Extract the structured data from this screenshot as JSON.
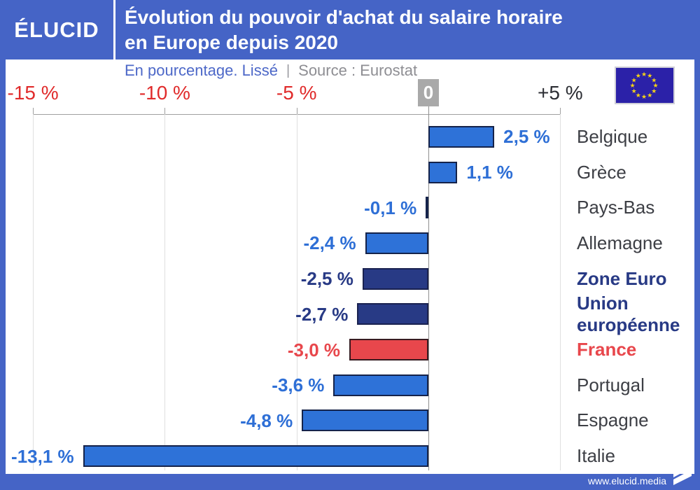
{
  "header": {
    "logo": "ÉLUCID",
    "title_line1": "Évolution du pouvoir d'achat du salaire horaire",
    "title_line2": "en Europe depuis 2020"
  },
  "subheader": {
    "note": "En pourcentage. Lissé",
    "separator": "|",
    "source": "Source : Eurostat"
  },
  "footer": {
    "url": "www.elucid.media"
  },
  "colors": {
    "brand_blue": "#4564c6",
    "bar_blue": "#2e72d8",
    "bar_blue_border": "#15234a",
    "bar_navy": "#283a85",
    "bar_navy_border": "#1a2250",
    "bar_red": "#e8474c",
    "bar_red_border": "#371a20",
    "label_blue": "#2e6fd6",
    "label_navy": "#283a85",
    "label_red": "#e8474c",
    "country_gray": "#3d3f45",
    "axis_red": "#e02b2b",
    "axis_dark": "#2b2d33",
    "zero_box_bg": "#a9a9a9",
    "eu_flag_bg": "#2b21a8",
    "eu_star_yellow": "#f5d216"
  },
  "chart_data": {
    "type": "bar",
    "orientation": "horizontal",
    "title": "Évolution du pouvoir d'achat du salaire horaire en Europe depuis 2020",
    "subtitle": "En pourcentage. Lissé",
    "source": "Source : Eurostat",
    "xlabel": "",
    "ylabel": "",
    "grid": true,
    "axis": {
      "xlim": [
        -15.5,
        5.2
      ],
      "ticks": [
        {
          "label": "-15 %",
          "value": -15
        },
        {
          "label": "-10 %",
          "value": -10
        },
        {
          "label": "-5 %",
          "value": -5
        },
        {
          "label": "0",
          "value": 0
        },
        {
          "label": "+5 %",
          "value": 5
        }
      ]
    },
    "categories": [
      "Belgique",
      "Grèce",
      "Pays-Bas",
      "Allemagne",
      "Zone Euro",
      "Union européenne",
      "France",
      "Portugal",
      "Espagne",
      "Italie"
    ],
    "values": [
      2.5,
      1.1,
      -0.1,
      -2.4,
      -2.5,
      -2.7,
      -3.0,
      -3.6,
      -4.8,
      -13.1
    ],
    "rows": [
      {
        "country": "Belgique",
        "value": 2.5,
        "value_label": "2,5 %",
        "style": "blue"
      },
      {
        "country": "Grèce",
        "value": 1.1,
        "value_label": "1,1 %",
        "style": "blue"
      },
      {
        "country": "Pays-Bas",
        "value": -0.1,
        "value_label": "-0,1 %",
        "style": "blue"
      },
      {
        "country": "Allemagne",
        "value": -2.4,
        "value_label": "-2,4 %",
        "style": "blue"
      },
      {
        "country": "Zone Euro",
        "value": -2.5,
        "value_label": "-2,5 %",
        "style": "navy"
      },
      {
        "country": "Union européenne",
        "value": -2.7,
        "value_label": "-2,7 %",
        "style": "navy"
      },
      {
        "country": "France",
        "value": -3.0,
        "value_label": "-3,0 %",
        "style": "red"
      },
      {
        "country": "Portugal",
        "value": -3.6,
        "value_label": "-3,6 %",
        "style": "blue"
      },
      {
        "country": "Espagne",
        "value": -4.8,
        "value_label": "-4,8 %",
        "style": "blue"
      },
      {
        "country": "Italie",
        "value": -13.1,
        "value_label": "-13,1 %",
        "style": "blue"
      }
    ]
  }
}
